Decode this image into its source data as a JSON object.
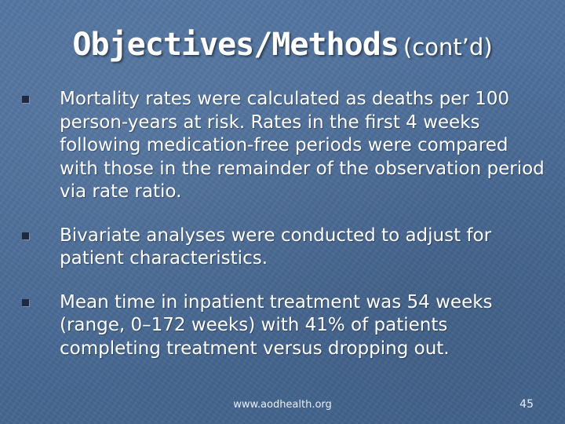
{
  "slide": {
    "title_main": "Objectives/Methods",
    "title_sub": "(cont’d)",
    "bullets": [
      "Mortality rates were calculated as deaths per 100 person-years at risk. Rates in the first 4 weeks following medication-free periods were compared with those in the remainder of the observation period via rate ratio.",
      "Bivariate analyses were conducted to adjust for patient characteristics.",
      "Mean time in inpatient treatment was 54 weeks (range, 0–172 weeks) with 41% of patients completing treatment versus dropping out."
    ],
    "footer_url": "www.aodhealth.org",
    "page_number": "45"
  },
  "colors": {
    "background": "#4a6d99",
    "text": "#ffffff",
    "bullet_marker": "#1e2a3f"
  }
}
